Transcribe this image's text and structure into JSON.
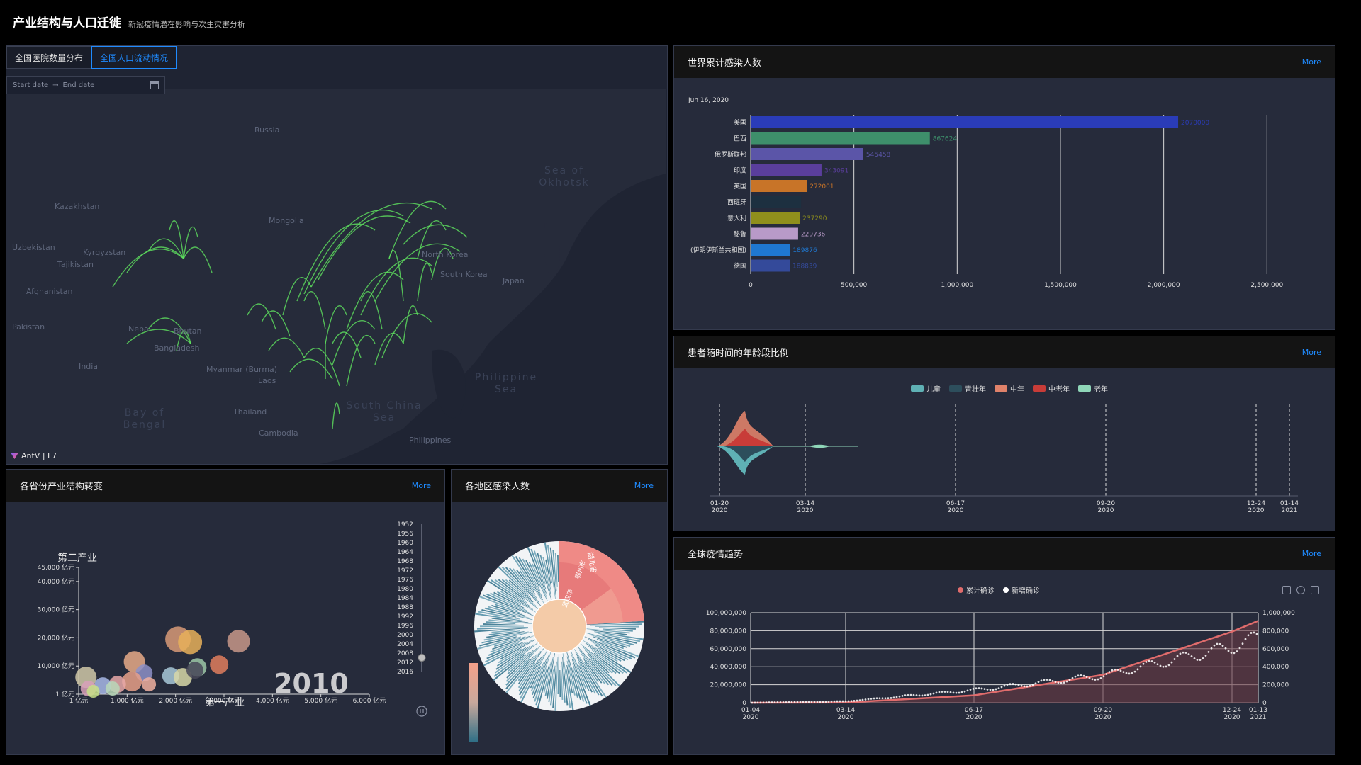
{
  "header": {
    "title": "产业结构与人口迁徙",
    "subtitle": "新冠疫情潜在影响与次生灾害分析"
  },
  "map": {
    "tabs": [
      "全国医院数量分布",
      "全国人口流动情况"
    ],
    "active_tab": 1,
    "date_start_placeholder": "Start date",
    "date_end_placeholder": "End date",
    "attribution": "AntV | L7",
    "labels": [
      "Russia",
      "Kazakhstan",
      "Mongolia",
      "Uzbekistan",
      "Kyrgyzstan",
      "Tajikistan",
      "Afghanistan",
      "Pakistan",
      "Nepal",
      "Bhutan",
      "India",
      "Bangladesh",
      "Myanmar (Burma)",
      "Laos",
      "Thailand",
      "Cambodia",
      "Japan",
      "South Korea",
      "North Korea",
      "Philippines"
    ],
    "sea_labels": [
      "Sea of Okhotsk",
      "Philippine Sea",
      "Bay of Bengal",
      "South China Sea"
    ],
    "arc_color": "#5fe25f"
  },
  "bar_chart": {
    "title": "世界累计感染人数",
    "more": "More",
    "date": "Jun 16, 2020",
    "chart_data": {
      "type": "bar",
      "orientation": "horizontal",
      "categories": [
        "美国",
        "巴西",
        "俄罗斯联邦",
        "印度",
        "英国",
        "西班牙",
        "意大利",
        "秘鲁",
        "(伊朗伊斯兰共和国)",
        "德国"
      ],
      "values": [
        2070000,
        867624,
        545458,
        343091,
        272001,
        244000,
        237290,
        229736,
        189876,
        188839
      ],
      "value_labels": [
        "2070000",
        "867624",
        "545458",
        "343091",
        "272001",
        "",
        "237290",
        "229736",
        "189876",
        "188839"
      ],
      "colors": [
        "#2a3cb8",
        "#3e8f6b",
        "#5b55a8",
        "#5a3e9c",
        "#c87428",
        "#1d3040",
        "#8f8f1c",
        "#b89ac8",
        "#1f78d1",
        "#344a9a"
      ],
      "xlim": [
        0,
        2650000
      ],
      "xticks": [
        "0",
        "500,000",
        "1,000,000",
        "1,500,000",
        "2,000,000",
        "2,500,000"
      ]
    }
  },
  "age_chart": {
    "title": "患者随时间的年龄段比例",
    "more": "More",
    "legend": [
      {
        "name": "儿童",
        "color": "#5fb1b5"
      },
      {
        "name": "青壮年",
        "color": "#2d4e5c"
      },
      {
        "name": "中年",
        "color": "#e0826a"
      },
      {
        "name": "中老年",
        "color": "#c83c38"
      },
      {
        "name": "老年",
        "color": "#8fd6b8"
      }
    ],
    "xticks": [
      {
        "date": "01-20",
        "year": "2020"
      },
      {
        "date": "03-14",
        "year": "2020"
      },
      {
        "date": "06-17",
        "year": "2020"
      },
      {
        "date": "09-20",
        "year": "2020"
      },
      {
        "date": "12-24",
        "year": "2020"
      },
      {
        "date": "01-14",
        "year": "2021"
      }
    ]
  },
  "trend_chart": {
    "title": "全球疫情趋势",
    "more": "More",
    "legend": [
      {
        "name": "累计确诊",
        "color": "#e06c6c"
      },
      {
        "name": "新增确诊",
        "color": "#ffffff"
      }
    ],
    "left_yticks": [
      "0",
      "20,000,000",
      "40,000,000",
      "60,000,000",
      "80,000,000",
      "100,000,000"
    ],
    "right_yticks": [
      "0",
      "200,000",
      "400,000",
      "600,000",
      "800,000",
      "1,000,000"
    ],
    "xticks": [
      {
        "date": "01-04",
        "year": "2020"
      },
      {
        "date": "03-14",
        "year": "2020"
      },
      {
        "date": "06-17",
        "year": "2020"
      },
      {
        "date": "09-20",
        "year": "2020"
      },
      {
        "date": "12-24",
        "year": "2020"
      },
      {
        "date": "01-13",
        "year": "2021"
      }
    ],
    "chart_data": {
      "type": "line",
      "series": [
        {
          "name": "累计确诊",
          "axis": "left",
          "x": [
            "2020-01-04",
            "2020-03-14",
            "2020-06-17",
            "2020-09-20",
            "2020-12-24",
            "2021-01-13"
          ],
          "values": [
            0,
            150000,
            8200000,
            31000000,
            79000000,
            91000000
          ]
        },
        {
          "name": "新增确诊",
          "axis": "right",
          "x": [
            "2020-01-04",
            "2020-03-14",
            "2020-06-17",
            "2020-09-20",
            "2020-12-24",
            "2021-01-13"
          ],
          "values": [
            0,
            15000,
            140000,
            300000,
            620000,
            720000
          ]
        }
      ]
    }
  },
  "bubble_chart": {
    "title": "各省份产业结构转变",
    "more": "More",
    "ylabel": "第二产业",
    "xlabel": "第一产业",
    "year": "2010",
    "yticks": [
      "1 亿元",
      "10,000 亿元",
      "20,000 亿元",
      "30,000 亿元",
      "40,000 亿元",
      "45,000 亿元"
    ],
    "xticks": [
      "1 亿元",
      "1,000 亿元",
      "2,000 亿元",
      "3,000 亿元",
      "4,000 亿元",
      "5,000 亿元",
      "6,000 亿元"
    ],
    "timeline": [
      "1952",
      "1956",
      "1960",
      "1964",
      "1968",
      "1972",
      "1976",
      "1980",
      "1984",
      "1988",
      "1992",
      "1996",
      "2000",
      "2004",
      "2008",
      "2012",
      "2016"
    ],
    "chart_data": {
      "type": "scatter",
      "points": [
        {
          "x": 2050,
          "y": 19500,
          "r": 18,
          "color": "#d89a78"
        },
        {
          "x": 2300,
          "y": 18500,
          "r": 17,
          "color": "#e8b05a"
        },
        {
          "x": 3300,
          "y": 18800,
          "r": 16,
          "color": "#c8988a"
        },
        {
          "x": 2900,
          "y": 10500,
          "r": 13,
          "color": "#e07e5e"
        },
        {
          "x": 1150,
          "y": 11500,
          "r": 15,
          "color": "#e8aa88"
        },
        {
          "x": 2450,
          "y": 9500,
          "r": 13,
          "color": "#9ec8a8"
        },
        {
          "x": 1350,
          "y": 7500,
          "r": 12,
          "color": "#8e90c8"
        },
        {
          "x": 1900,
          "y": 6500,
          "r": 12,
          "color": "#a8c8d8"
        },
        {
          "x": 2150,
          "y": 6000,
          "r": 13,
          "color": "#d8d8a8"
        },
        {
          "x": 150,
          "y": 6000,
          "r": 15,
          "color": "#d0c8a8"
        },
        {
          "x": 1100,
          "y": 4500,
          "r": 14,
          "color": "#e8a088"
        },
        {
          "x": 800,
          "y": 3500,
          "r": 12,
          "color": "#e8a8a8"
        },
        {
          "x": 500,
          "y": 3000,
          "r": 12,
          "color": "#a8b8e8"
        },
        {
          "x": 1450,
          "y": 3500,
          "r": 10,
          "color": "#f0b0a0"
        },
        {
          "x": 200,
          "y": 2000,
          "r": 11,
          "color": "#d8a0b8"
        },
        {
          "x": 300,
          "y": 1000,
          "r": 9,
          "color": "#c8e088"
        },
        {
          "x": 700,
          "y": 2000,
          "r": 10,
          "color": "#b8d8b8"
        },
        {
          "x": 2400,
          "y": 8500,
          "r": 12,
          "color": "#484858"
        }
      ]
    }
  },
  "sunburst": {
    "title": "各地区感染人数",
    "more": "More",
    "labels": [
      "湖北省",
      "鄂州市",
      "武汉市"
    ],
    "center_color": "#f4cba8"
  }
}
